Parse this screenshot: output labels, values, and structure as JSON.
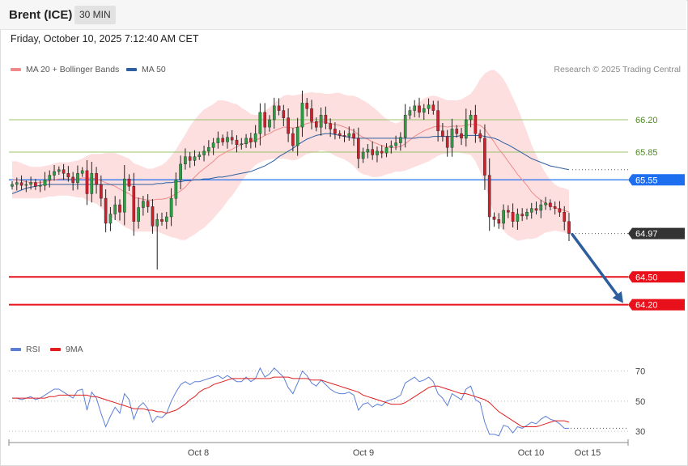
{
  "header": {
    "instrument": "Brent (ICE)",
    "timeframe": "30 MIN"
  },
  "datetime": "Friday, October 10, 2025 7:12:40 AM CET",
  "legend": {
    "price": [
      {
        "label": "MA 20 + Bollinger Bands",
        "color": "#f08a8a"
      },
      {
        "label": "MA 50",
        "color": "#2f5f9e"
      }
    ],
    "rsi": [
      {
        "label": "RSI",
        "color": "#5b7fd6"
      },
      {
        "label": "9MA",
        "color": "#e02020"
      }
    ]
  },
  "credit": "Research © 2025 Trading Central",
  "chart_data": [
    {
      "type": "candlestick",
      "ylim": [
        63.82,
        66.62
      ],
      "x_ticks": [
        "Oct 8",
        "Oct 9",
        "Oct 10",
        "Oct 15"
      ],
      "levels": [
        {
          "value": 66.2,
          "label": "66.20",
          "style": "thin",
          "color": "#9bc36b",
          "text_color": "#4e8a21"
        },
        {
          "value": 65.85,
          "label": "65.85",
          "style": "thin",
          "color": "#9bc36b",
          "text_color": "#4e8a21"
        },
        {
          "value": 65.55,
          "label": "65.55",
          "style": "pivot",
          "color": "#1e6ff0",
          "text_color": "#ffffff"
        },
        {
          "value": 64.97,
          "label": "64.97",
          "style": "last",
          "color": "#333333",
          "text_color": "#ffffff"
        },
        {
          "value": 64.5,
          "label": "64.50",
          "style": "support",
          "color": "#e8101a",
          "text_color": "#ffffff"
        },
        {
          "value": 64.2,
          "label": "64.20",
          "style": "support",
          "color": "#e8101a",
          "text_color": "#ffffff"
        }
      ],
      "forecast_arrow": {
        "from": 64.96,
        "to": 64.2
      },
      "close": [
        65.5,
        65.52,
        65.49,
        65.5,
        65.52,
        65.48,
        65.49,
        65.55,
        65.6,
        65.64,
        65.66,
        65.62,
        65.58,
        65.52,
        65.62,
        65.65,
        65.4,
        65.62,
        65.5,
        65.35,
        65.08,
        65.18,
        65.28,
        65.2,
        65.56,
        65.48,
        65.1,
        65.25,
        65.32,
        65.26,
        65.05,
        65.12,
        65.1,
        65.15,
        65.35,
        65.55,
        65.72,
        65.8,
        65.76,
        65.8,
        65.82,
        65.86,
        65.9,
        65.95,
        66.0,
        65.96,
        66.01,
        65.98,
        65.93,
        65.94,
        66.0,
        65.96,
        66.05,
        66.28,
        66.12,
        66.2,
        66.35,
        66.3,
        66.22,
        66.05,
        65.92,
        66.12,
        66.38,
        66.32,
        66.18,
        66.12,
        66.25,
        66.16,
        66.1,
        66.05,
        66.03,
        66.02,
        66.05,
        66.0,
        65.78,
        65.85,
        65.88,
        65.82,
        65.86,
        65.84,
        65.9,
        65.92,
        65.95,
        66.01,
        66.25,
        66.3,
        66.35,
        66.28,
        66.32,
        66.36,
        66.3,
        66.08,
        66.02,
        65.9,
        66.1,
        66.05,
        66.0,
        66.2,
        66.25,
        66.05,
        66.0,
        65.6,
        65.15,
        65.12,
        65.08,
        65.22,
        65.2,
        65.1,
        65.18,
        65.16,
        65.2,
        65.24,
        65.22,
        65.28,
        65.3,
        65.26,
        65.24,
        65.2,
        65.1,
        64.97
      ],
      "ma20": [
        65.55,
        65.55,
        65.54,
        65.53,
        65.52,
        65.52,
        65.52,
        65.53,
        65.54,
        65.55,
        65.56,
        65.56,
        65.56,
        65.56,
        65.56,
        65.57,
        65.57,
        65.57,
        65.56,
        65.54,
        65.52,
        65.5,
        65.48,
        65.45,
        65.42,
        65.4,
        65.36,
        65.35,
        65.34,
        65.33,
        65.33,
        65.34,
        65.34,
        65.35,
        65.37,
        65.4,
        65.43,
        65.47,
        65.53,
        65.58,
        65.63,
        65.67,
        65.71,
        65.75,
        65.8,
        65.83,
        65.86,
        65.88,
        65.91,
        65.93,
        65.95,
        65.96,
        65.98,
        66.0,
        66.03,
        66.05,
        66.08,
        66.1,
        66.12,
        66.12,
        66.11,
        66.12,
        66.14,
        66.16,
        66.17,
        66.17,
        66.18,
        66.17,
        66.16,
        66.15,
        66.14,
        66.12,
        66.1,
        66.08,
        66.04,
        66.01,
        65.99,
        65.96,
        65.94,
        65.92,
        65.91,
        65.9,
        65.9,
        65.91,
        65.94,
        65.98,
        66.02,
        66.05,
        66.08,
        66.1,
        66.12,
        66.13,
        66.13,
        66.12,
        66.13,
        66.13,
        66.13,
        66.14,
        66.15,
        66.15,
        66.14,
        66.1,
        66.03,
        65.96,
        65.88,
        65.82,
        65.75,
        65.68,
        65.61,
        65.55,
        65.49,
        65.42,
        65.37,
        65.33,
        65.3,
        65.27,
        65.25,
        65.23,
        65.22,
        65.2
      ],
      "bb_width": [
        0.2,
        0.2,
        0.19,
        0.18,
        0.17,
        0.17,
        0.17,
        0.17,
        0.17,
        0.18,
        0.18,
        0.18,
        0.18,
        0.19,
        0.2,
        0.21,
        0.24,
        0.26,
        0.27,
        0.29,
        0.32,
        0.34,
        0.36,
        0.37,
        0.38,
        0.38,
        0.37,
        0.36,
        0.35,
        0.34,
        0.34,
        0.35,
        0.37,
        0.4,
        0.44,
        0.48,
        0.53,
        0.57,
        0.6,
        0.62,
        0.63,
        0.64,
        0.63,
        0.62,
        0.61,
        0.58,
        0.54,
        0.5,
        0.46,
        0.4,
        0.35,
        0.3,
        0.27,
        0.26,
        0.27,
        0.28,
        0.3,
        0.32,
        0.34,
        0.35,
        0.35,
        0.35,
        0.34,
        0.33,
        0.33,
        0.32,
        0.31,
        0.31,
        0.32,
        0.34,
        0.35,
        0.35,
        0.36,
        0.38,
        0.4,
        0.4,
        0.39,
        0.38,
        0.36,
        0.33,
        0.3,
        0.28,
        0.26,
        0.27,
        0.29,
        0.31,
        0.33,
        0.34,
        0.35,
        0.35,
        0.34,
        0.32,
        0.3,
        0.29,
        0.28,
        0.28,
        0.29,
        0.31,
        0.33,
        0.4,
        0.5,
        0.6,
        0.7,
        0.78,
        0.82,
        0.82,
        0.8,
        0.76,
        0.72,
        0.65,
        0.58,
        0.51,
        0.45,
        0.38,
        0.32,
        0.28,
        0.25,
        0.24,
        0.24,
        0.24
      ],
      "ma50": [
        65.4,
        65.42,
        65.44,
        65.46,
        65.47,
        65.48,
        65.49,
        65.5,
        65.5,
        65.5,
        65.5,
        65.5,
        65.5,
        65.5,
        65.5,
        65.5,
        65.5,
        65.5,
        65.5,
        65.5,
        65.5,
        65.5,
        65.5,
        65.5,
        65.5,
        65.5,
        65.5,
        65.5,
        65.5,
        65.5,
        65.5,
        65.51,
        65.51,
        65.52,
        65.52,
        65.53,
        65.53,
        65.54,
        65.54,
        65.55,
        65.55,
        65.56,
        65.56,
        65.57,
        65.58,
        65.58,
        65.59,
        65.6,
        65.61,
        65.62,
        65.63,
        65.64,
        65.66,
        65.68,
        65.7,
        65.73,
        65.76,
        65.8,
        65.83,
        65.86,
        65.89,
        65.93,
        65.96,
        65.99,
        66.01,
        66.03,
        66.04,
        66.05,
        66.05,
        66.04,
        66.03,
        66.02,
        66.01,
        66.0,
        66.0,
        66.0,
        66.0,
        66.0,
        66.0,
        66.0,
        66.0,
        66.0,
        66.0,
        66.0,
        66.0,
        66.0,
        66.0,
        66.01,
        66.01,
        66.01,
        66.02,
        66.02,
        66.02,
        66.02,
        66.02,
        66.02,
        66.03,
        66.03,
        66.03,
        66.03,
        66.03,
        66.02,
        66.01,
        66.0,
        65.98,
        65.95,
        65.93,
        65.9,
        65.87,
        65.84,
        65.81,
        65.78,
        65.76,
        65.74,
        65.72,
        65.7,
        65.69,
        65.68,
        65.67,
        65.66
      ]
    },
    {
      "type": "line",
      "ylim": [
        22,
        80
      ],
      "y_ticks": [
        70,
        50,
        30
      ],
      "series": [
        {
          "name": "RSI",
          "values": [
            52,
            52,
            51,
            52,
            53,
            51,
            52,
            54,
            56,
            58,
            58,
            56,
            54,
            52,
            57,
            58,
            44,
            56,
            52,
            42,
            33,
            40,
            46,
            42,
            55,
            51,
            38,
            46,
            49,
            45,
            36,
            40,
            39,
            42,
            50,
            56,
            61,
            63,
            61,
            63,
            63,
            64,
            65,
            66,
            67,
            65,
            67,
            65,
            63,
            63,
            66,
            63,
            65,
            72,
            66,
            68,
            72,
            69,
            66,
            59,
            55,
            62,
            70,
            67,
            62,
            60,
            64,
            61,
            58,
            56,
            55,
            55,
            56,
            54,
            44,
            48,
            49,
            46,
            48,
            47,
            50,
            51,
            52,
            54,
            62,
            64,
            66,
            63,
            64,
            66,
            63,
            55,
            52,
            47,
            55,
            53,
            51,
            58,
            60,
            51,
            49,
            36,
            28,
            28,
            27,
            34,
            33,
            29,
            33,
            32,
            34,
            36,
            35,
            38,
            40,
            38,
            37,
            35,
            32,
            32
          ]
        },
        {
          "name": "9MA",
          "values": [
            52,
            52,
            52,
            52,
            52,
            52,
            52,
            52,
            53,
            53,
            54,
            54,
            54,
            54,
            54,
            54,
            54,
            53,
            53,
            52,
            51,
            50,
            49,
            48,
            47,
            46,
            45,
            45,
            45,
            44,
            44,
            43,
            43,
            42,
            43,
            44,
            46,
            48,
            51,
            53,
            56,
            58,
            59,
            61,
            62,
            63,
            64,
            65,
            65,
            65,
            65,
            65,
            65,
            65,
            65,
            65,
            66,
            66,
            66,
            66,
            65,
            65,
            65,
            65,
            64,
            64,
            64,
            63,
            62,
            61,
            60,
            59,
            58,
            57,
            56,
            54,
            53,
            52,
            51,
            50,
            49,
            48,
            48,
            48,
            49,
            51,
            53,
            55,
            57,
            59,
            60,
            60,
            59,
            58,
            57,
            56,
            55,
            55,
            54,
            53,
            52,
            51,
            49,
            46,
            43,
            41,
            39,
            37,
            35,
            33,
            33,
            33,
            33,
            34,
            35,
            36,
            37,
            37,
            37,
            36
          ]
        }
      ]
    }
  ]
}
